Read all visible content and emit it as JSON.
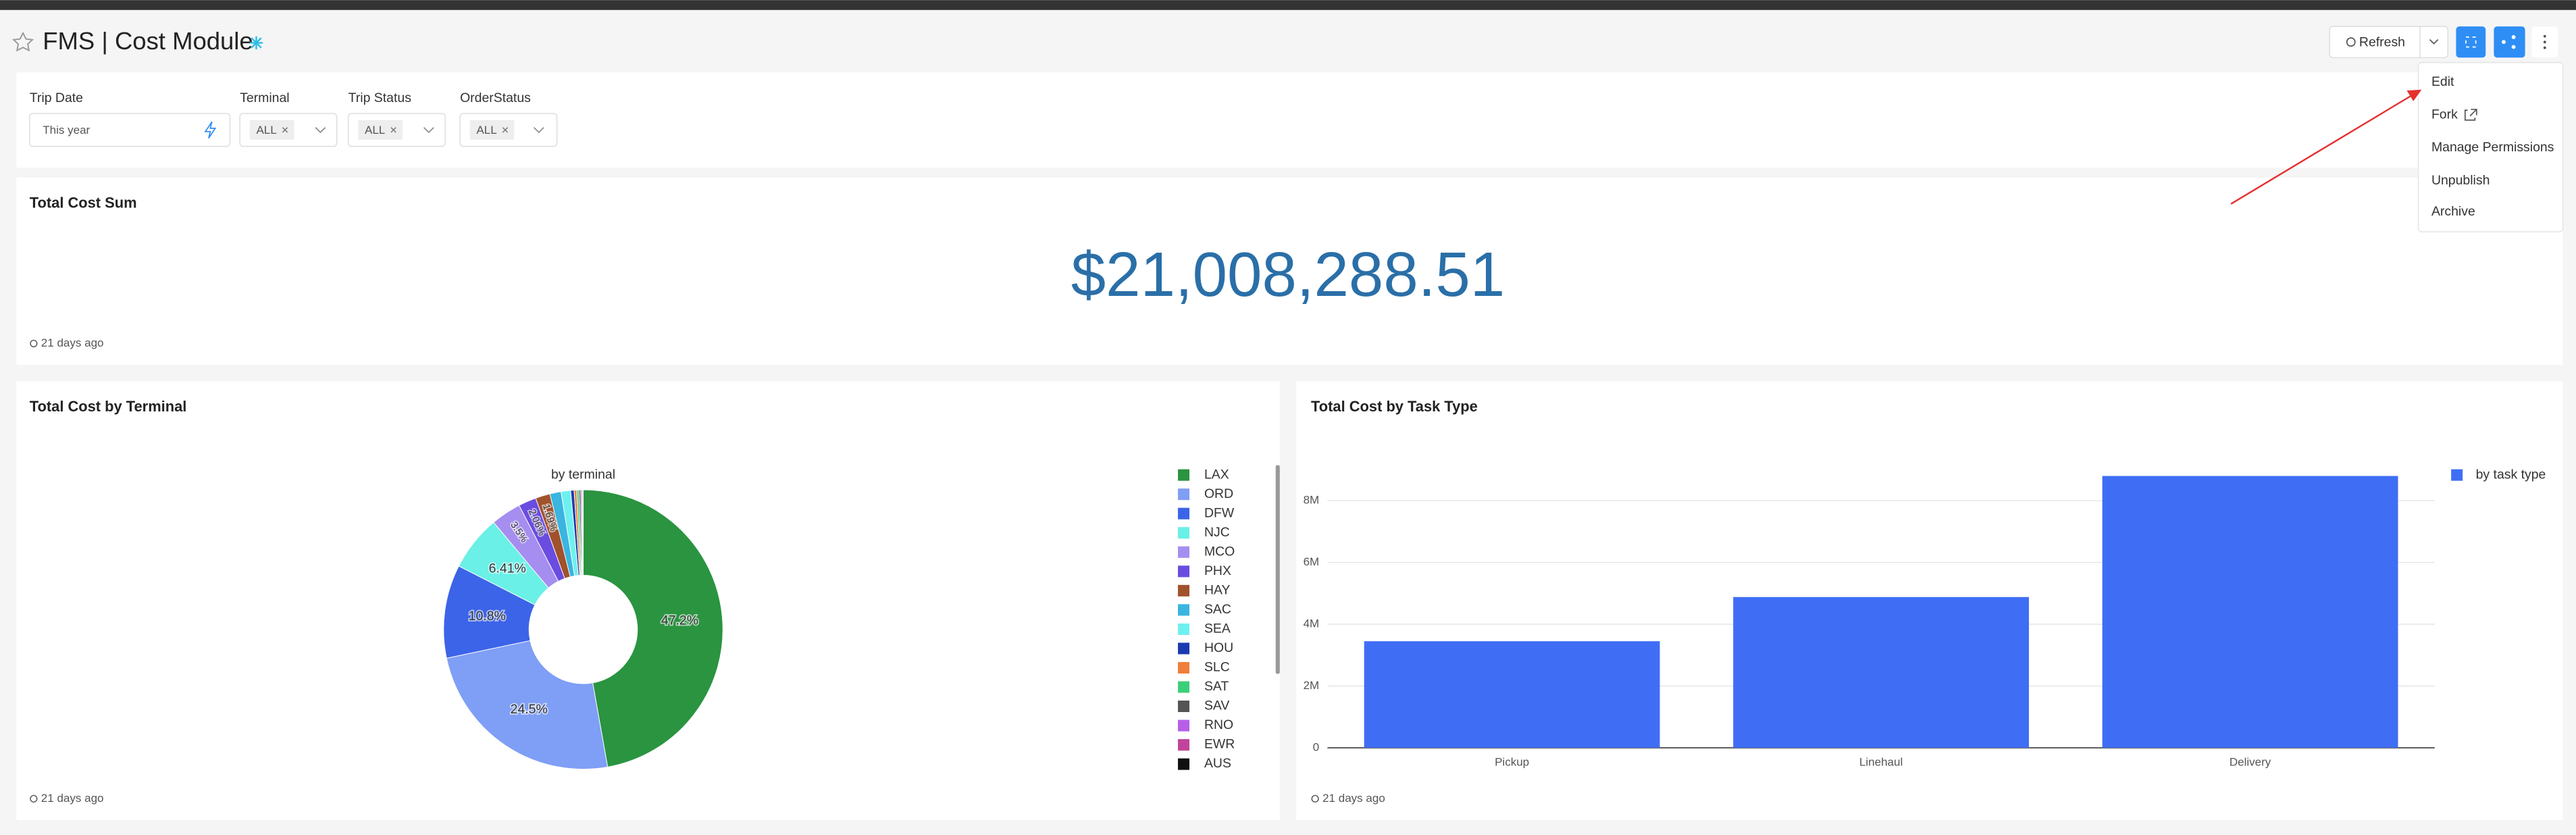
{
  "header": {
    "title": "FMS | Cost Module",
    "refresh": "Refresh"
  },
  "menu": [
    "Edit",
    "Fork",
    "Manage Permissions",
    "Unpublish",
    "Archive"
  ],
  "filters": [
    {
      "label": "Trip Date",
      "value": "This year"
    },
    {
      "label": "Terminal",
      "value": "ALL"
    },
    {
      "label": "Trip Status",
      "value": "ALL"
    },
    {
      "label": "OrderStatus",
      "value": "ALL"
    }
  ],
  "big_number": {
    "title": "Total Cost Sum",
    "value": "$21,008,288.51",
    "footnote": "21 days ago"
  },
  "chart_data": [
    {
      "type": "pie",
      "title": "Total Cost by Terminal",
      "subtitle": "by terminal",
      "footnote": "21 days ago",
      "donut": true,
      "categories": [
        "LAX",
        "ORD",
        "DFW",
        "NJC",
        "MCO",
        "PHX",
        "HAY",
        "SAC",
        "SEA",
        "HOU",
        "SLC",
        "SAT",
        "SAV",
        "RNO",
        "EWR",
        "AUS"
      ],
      "values": [
        47.2,
        24.5,
        10.8,
        6.41,
        3.5,
        2.06,
        1.69,
        1.3,
        1.1,
        0.4,
        0.3,
        0.25,
        0.2,
        0.15,
        0.1,
        0.04
      ],
      "value_labels": [
        "47.2%",
        "24.5%",
        "10.8%",
        "6.41%",
        "3.5%",
        "2.06%",
        "1.69%",
        null,
        null,
        null,
        null,
        null,
        null,
        null,
        null,
        null
      ],
      "colors": [
        "#2a9440",
        "#7f9ef5",
        "#3c64e8",
        "#6af0e6",
        "#a58ef0",
        "#6a4ce0",
        "#a0522d",
        "#3ab5e0",
        "#6ef0f0",
        "#1a3bb0",
        "#f07f3c",
        "#3ccf7a",
        "#555555",
        "#b75ee6",
        "#c2449a",
        "#111111"
      ]
    },
    {
      "type": "bar",
      "title": "Total Cost by Task Type",
      "footnote": "21 days ago",
      "grid": true,
      "categories": [
        "Pickup",
        "Linehaul",
        "Delivery"
      ],
      "series": [
        {
          "name": "by task type",
          "color": "#3f6ef5",
          "values": [
            3450000,
            4880000,
            8800000
          ]
        }
      ],
      "ylim": [
        0,
        9150000
      ],
      "yticks": [
        0,
        {
          "value": 2000000,
          "label": "2M"
        },
        {
          "value": 4000000,
          "label": "4M"
        },
        {
          "value": 6000000,
          "label": "6M"
        },
        {
          "value": 8000000,
          "label": "8M"
        }
      ]
    }
  ]
}
